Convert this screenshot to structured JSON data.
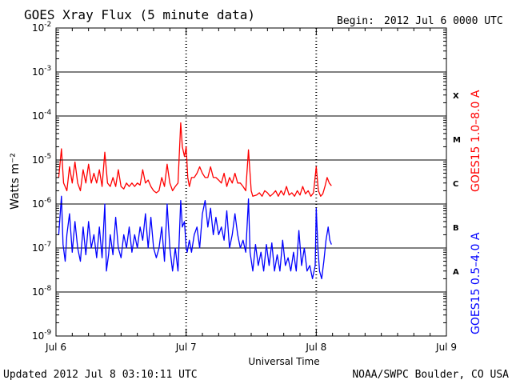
{
  "header": {
    "title": "GOES Xray Flux (5 minute data)",
    "begin_label": "Begin:",
    "begin_value": "2012 Jul 6 0000 UTC"
  },
  "footer": {
    "updated": "Updated 2012 Jul  8 03:10:11 UTC",
    "credit": "NOAA/SWPC Boulder, CO USA"
  },
  "colors": {
    "long_channel": "#ff0000",
    "short_channel": "#0000ff",
    "axis": "#000000",
    "background": "#ffffff"
  },
  "chart_data": {
    "type": "line",
    "title": "GOES Xray Flux (5 minute data)",
    "xlabel": "Universal Time",
    "ylabel": "Watts m⁻²",
    "yscale": "log",
    "ylim": [
      1e-09,
      0.01
    ],
    "xlim": [
      0,
      72
    ],
    "x_unit": "hours since 2012 Jul 6 0000 UTC",
    "x_ticks": [
      {
        "label": "Jul 6",
        "hours": 0
      },
      {
        "label": "Jul 7",
        "hours": 24
      },
      {
        "label": "Jul 8",
        "hours": 48
      },
      {
        "label": "Jul 9",
        "hours": 72
      }
    ],
    "y_ticks": [
      {
        "mant": "10",
        "exp": "-2",
        "value": 0.01
      },
      {
        "mant": "10",
        "exp": "-3",
        "value": 0.001
      },
      {
        "mant": "10",
        "exp": "-4",
        "value": 0.0001
      },
      {
        "mant": "10",
        "exp": "-5",
        "value": 1e-05
      },
      {
        "mant": "10",
        "exp": "-6",
        "value": 1e-06
      },
      {
        "mant": "10",
        "exp": "-7",
        "value": 1e-07
      },
      {
        "mant": "10",
        "exp": "-8",
        "value": 1e-08
      },
      {
        "mant": "10",
        "exp": "-9",
        "value": 1e-09
      }
    ],
    "grid": {
      "horizontal": true,
      "decades": [
        0.001,
        0.0001,
        1e-05,
        1e-06,
        1e-07,
        1e-08
      ]
    },
    "flare_classes": [
      {
        "label": "X",
        "value": 0.0003
      },
      {
        "label": "M",
        "value": 3e-05
      },
      {
        "label": "C",
        "value": 3e-06
      },
      {
        "label": "B",
        "value": 3e-07
      },
      {
        "label": "A",
        "value": 3e-08
      }
    ],
    "series": [
      {
        "name": "GOES15 1.0–8.0 A",
        "color": "#ff0000",
        "points": [
          [
            0.5,
            4e-06
          ],
          [
            1.0,
            1.8e-05
          ],
          [
            1.4,
            3e-06
          ],
          [
            2.0,
            2e-06
          ],
          [
            2.5,
            7e-06
          ],
          [
            3.0,
            3e-06
          ],
          [
            3.5,
            9e-06
          ],
          [
            4.0,
            3e-06
          ],
          [
            4.5,
            2e-06
          ],
          [
            5.0,
            6e-06
          ],
          [
            5.5,
            3e-06
          ],
          [
            6.0,
            8e-06
          ],
          [
            6.5,
            3e-06
          ],
          [
            7.0,
            5e-06
          ],
          [
            7.5,
            3e-06
          ],
          [
            8.0,
            6e-06
          ],
          [
            8.5,
            2.5e-06
          ],
          [
            9.0,
            1.5e-05
          ],
          [
            9.5,
            3e-06
          ],
          [
            10.0,
            2.5e-06
          ],
          [
            10.5,
            4e-06
          ],
          [
            11.0,
            2.5e-06
          ],
          [
            11.5,
            6e-06
          ],
          [
            12.0,
            2.5e-06
          ],
          [
            12.5,
            2.2e-06
          ],
          [
            13.0,
            3e-06
          ],
          [
            13.5,
            2.5e-06
          ],
          [
            14.0,
            3e-06
          ],
          [
            14.5,
            2.5e-06
          ],
          [
            15.0,
            3e-06
          ],
          [
            15.5,
            2.7e-06
          ],
          [
            16.0,
            6e-06
          ],
          [
            16.5,
            3e-06
          ],
          [
            17.0,
            3.5e-06
          ],
          [
            17.5,
            2.5e-06
          ],
          [
            18.0,
            2e-06
          ],
          [
            18.5,
            1.8e-06
          ],
          [
            19.0,
            2e-06
          ],
          [
            19.5,
            4e-06
          ],
          [
            20.0,
            2.5e-06
          ],
          [
            20.5,
            8e-06
          ],
          [
            21.0,
            3e-06
          ],
          [
            21.5,
            2e-06
          ],
          [
            22.0,
            2.5e-06
          ],
          [
            22.5,
            3e-06
          ],
          [
            23.0,
            7e-05
          ],
          [
            23.3,
            2e-05
          ],
          [
            23.7,
            1.2e-05
          ],
          [
            24.0,
            2e-05
          ],
          [
            24.3,
            4e-06
          ],
          [
            24.6,
            2.5e-06
          ],
          [
            25.0,
            4e-06
          ],
          [
            25.5,
            4e-06
          ],
          [
            26.0,
            5e-06
          ],
          [
            26.5,
            7e-06
          ],
          [
            27.0,
            5e-06
          ],
          [
            27.5,
            4e-06
          ],
          [
            28.0,
            4e-06
          ],
          [
            28.5,
            7e-06
          ],
          [
            29.0,
            4e-06
          ],
          [
            29.5,
            4e-06
          ],
          [
            30.0,
            3.5e-06
          ],
          [
            30.5,
            3e-06
          ],
          [
            31.0,
            5e-06
          ],
          [
            31.5,
            2.5e-06
          ],
          [
            32.0,
            4e-06
          ],
          [
            32.5,
            3e-06
          ],
          [
            33.0,
            5e-06
          ],
          [
            33.5,
            3e-06
          ],
          [
            34.0,
            3e-06
          ],
          [
            34.5,
            2.5e-06
          ],
          [
            35.0,
            2e-06
          ],
          [
            35.5,
            1.7e-05
          ],
          [
            36.0,
            2e-06
          ],
          [
            36.3,
            1.5e-06
          ],
          [
            37.0,
            1.6e-06
          ],
          [
            37.5,
            1.8e-06
          ],
          [
            38.0,
            1.5e-06
          ],
          [
            38.5,
            2e-06
          ],
          [
            39.0,
            1.8e-06
          ],
          [
            39.5,
            1.5e-06
          ],
          [
            40.0,
            1.7e-06
          ],
          [
            40.5,
            2e-06
          ],
          [
            41.0,
            1.5e-06
          ],
          [
            41.5,
            2e-06
          ],
          [
            42.0,
            1.6e-06
          ],
          [
            42.5,
            2.5e-06
          ],
          [
            43.0,
            1.6e-06
          ],
          [
            43.5,
            1.8e-06
          ],
          [
            44.0,
            1.5e-06
          ],
          [
            44.5,
            2e-06
          ],
          [
            45.0,
            1.6e-06
          ],
          [
            45.5,
            2.5e-06
          ],
          [
            46.0,
            1.7e-06
          ],
          [
            46.5,
            2e-06
          ],
          [
            47.0,
            1.5e-06
          ],
          [
            47.5,
            1.8e-06
          ],
          [
            48.0,
            7e-06
          ],
          [
            48.4,
            2e-06
          ],
          [
            48.8,
            1.5e-06
          ],
          [
            49.2,
            1.7e-06
          ],
          [
            49.6,
            2.5e-06
          ],
          [
            50.0,
            4e-06
          ],
          [
            50.4,
            3e-06
          ],
          [
            50.8,
            2.6e-06
          ]
        ]
      },
      {
        "name": "GOES15 0.5–4.0 A",
        "color": "#0000ff",
        "points": [
          [
            0.5,
            2e-07
          ],
          [
            1.0,
            1.5e-06
          ],
          [
            1.3,
            1.2e-07
          ],
          [
            1.7,
            5e-08
          ],
          [
            2.0,
            2e-07
          ],
          [
            2.5,
            6e-07
          ],
          [
            3.0,
            8e-08
          ],
          [
            3.5,
            4e-07
          ],
          [
            4.0,
            1e-07
          ],
          [
            4.5,
            5e-08
          ],
          [
            5.0,
            3e-07
          ],
          [
            5.5,
            7e-08
          ],
          [
            6.0,
            4e-07
          ],
          [
            6.5,
            1e-07
          ],
          [
            7.0,
            2e-07
          ],
          [
            7.5,
            6e-08
          ],
          [
            8.0,
            3e-07
          ],
          [
            8.5,
            6e-08
          ],
          [
            9.0,
            1e-06
          ],
          [
            9.3,
            3e-08
          ],
          [
            9.7,
            7e-08
          ],
          [
            10.0,
            2e-07
          ],
          [
            10.5,
            7e-08
          ],
          [
            11.0,
            5e-07
          ],
          [
            11.5,
            1e-07
          ],
          [
            12.0,
            6e-08
          ],
          [
            12.5,
            2e-07
          ],
          [
            13.0,
            1e-07
          ],
          [
            13.5,
            3e-07
          ],
          [
            14.0,
            8e-08
          ],
          [
            14.5,
            2e-07
          ],
          [
            15.0,
            1e-07
          ],
          [
            15.5,
            3e-07
          ],
          [
            16.0,
            1.5e-07
          ],
          [
            16.5,
            6e-07
          ],
          [
            17.0,
            1e-07
          ],
          [
            17.5,
            5e-07
          ],
          [
            18.0,
            1e-07
          ],
          [
            18.5,
            6e-08
          ],
          [
            19.0,
            1e-07
          ],
          [
            19.5,
            3e-07
          ],
          [
            20.0,
            5e-08
          ],
          [
            20.5,
            1e-06
          ],
          [
            21.0,
            1e-07
          ],
          [
            21.5,
            3e-08
          ],
          [
            22.0,
            1e-07
          ],
          [
            22.5,
            3e-08
          ],
          [
            23.0,
            1.2e-06
          ],
          [
            23.3,
            3e-07
          ],
          [
            23.7,
            4e-07
          ],
          [
            24.0,
            1e-07
          ],
          [
            24.2,
            8e-08
          ],
          [
            24.6,
            1.5e-07
          ],
          [
            25.0,
            8e-08
          ],
          [
            25.5,
            2e-07
          ],
          [
            26.0,
            3e-07
          ],
          [
            26.5,
            1e-07
          ],
          [
            27.0,
            6e-07
          ],
          [
            27.5,
            1.2e-06
          ],
          [
            28.0,
            3e-07
          ],
          [
            28.5,
            8e-07
          ],
          [
            29.0,
            2e-07
          ],
          [
            29.5,
            5e-07
          ],
          [
            30.0,
            2e-07
          ],
          [
            30.5,
            3e-07
          ],
          [
            31.0,
            1.5e-07
          ],
          [
            31.5,
            7e-07
          ],
          [
            32.0,
            1e-07
          ],
          [
            32.5,
            2e-07
          ],
          [
            33.0,
            6e-07
          ],
          [
            33.5,
            2e-07
          ],
          [
            34.0,
            1e-07
          ],
          [
            34.5,
            1.5e-07
          ],
          [
            35.0,
            8e-08
          ],
          [
            35.5,
            1.3e-06
          ],
          [
            35.8,
            8e-08
          ],
          [
            36.3,
            3e-08
          ],
          [
            36.8,
            1.2e-07
          ],
          [
            37.3,
            4e-08
          ],
          [
            37.8,
            8e-08
          ],
          [
            38.3,
            3e-08
          ],
          [
            38.8,
            1.2e-07
          ],
          [
            39.3,
            4e-08
          ],
          [
            39.8,
            1.3e-07
          ],
          [
            40.3,
            3e-08
          ],
          [
            40.8,
            7e-08
          ],
          [
            41.3,
            3e-08
          ],
          [
            41.8,
            1.5e-07
          ],
          [
            42.3,
            4e-08
          ],
          [
            42.8,
            6e-08
          ],
          [
            43.3,
            3e-08
          ],
          [
            43.8,
            8e-08
          ],
          [
            44.3,
            3e-08
          ],
          [
            44.8,
            2.5e-07
          ],
          [
            45.3,
            4e-08
          ],
          [
            45.8,
            1e-07
          ],
          [
            46.3,
            3e-08
          ],
          [
            46.8,
            4e-08
          ],
          [
            47.3,
            2e-08
          ],
          [
            47.8,
            4e-08
          ],
          [
            48.0,
            8e-07
          ],
          [
            48.3,
            1e-07
          ],
          [
            48.6,
            3e-08
          ],
          [
            49.0,
            2e-08
          ],
          [
            49.4,
            5e-08
          ],
          [
            49.8,
            1.5e-07
          ],
          [
            50.2,
            3e-07
          ],
          [
            50.5,
            1.5e-07
          ],
          [
            50.8,
            1.2e-07
          ]
        ]
      }
    ]
  }
}
